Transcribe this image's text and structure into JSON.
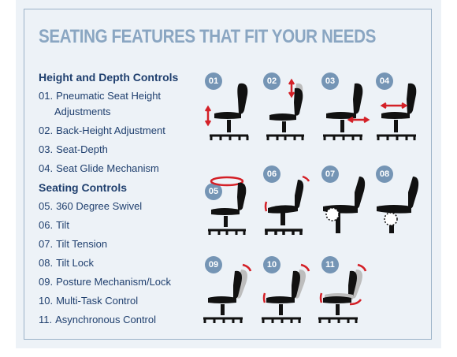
{
  "title": "SEATING FEATURES THAT FIT YOUR NEEDS",
  "sections": [
    {
      "heading": "Height and Depth Controls"
    },
    {
      "heading": "Seating Controls"
    }
  ],
  "features": [
    {
      "num": "01.",
      "label": "Pneumatic Seat Height"
    },
    {
      "cont": "Adjustments"
    },
    {
      "num": "02.",
      "label": "Back-Height Adjustment"
    },
    {
      "num": "03.",
      "label": "Seat-Depth"
    },
    {
      "num": "04.",
      "label": "Seat Glide Mechanism"
    },
    {
      "num": "05.",
      "label": "360 Degree Swivel"
    },
    {
      "num": "06.",
      "label": "Tilt"
    },
    {
      "num": "07.",
      "label": "Tilt Tension"
    },
    {
      "num": "08.",
      "label": "Tilt Lock"
    },
    {
      "num": "09.",
      "label": "Posture Mechanism/Lock"
    },
    {
      "num": "10.",
      "label": "Multi-Task Control"
    },
    {
      "num": "11.",
      "label": "Asynchronous Control"
    }
  ],
  "badges": [
    "01",
    "02",
    "03",
    "04",
    "05",
    "06",
    "07",
    "08",
    "09",
    "10",
    "11"
  ],
  "colors": {
    "accent": "#d42027",
    "badge": "#7595b5",
    "text": "#1f3f6e",
    "title": "#8aa6c2",
    "chair": "#111111",
    "ghost": "#bdbdbd"
  }
}
